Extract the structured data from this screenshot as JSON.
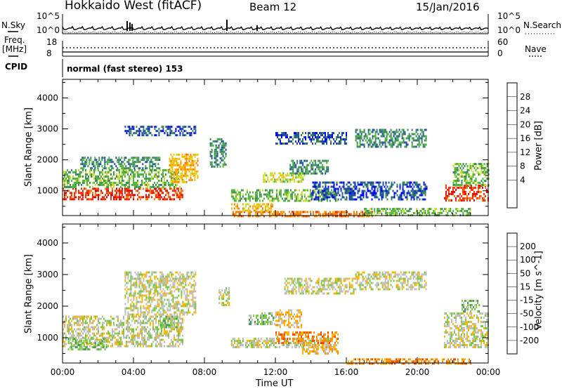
{
  "header": {
    "title": "Hokkaido West (fitACF)",
    "beam": "Beam 12",
    "date": "15/Jan/2016"
  },
  "panels": {
    "nsky_label": "N.Sky",
    "nsky_ticks": [
      "10^5",
      "10^0"
    ],
    "nsky_right_ticks": [
      "10^5",
      "10^0"
    ],
    "nsearch_label": "N.Search",
    "freq_label": "Freq.",
    "freq_unit": "[MHz]",
    "freq_ticks": [
      "18",
      "8"
    ],
    "nave_ticks": [
      "60",
      "0"
    ],
    "nave_label": "Nave",
    "cpid_label": "CPID",
    "cpid_value": "normal (fast stereo) 153"
  },
  "colors": {
    "power_scale": [
      "#0000ff",
      "#1e50a0",
      "#3c8a5a",
      "#50b43c",
      "#c8dc28",
      "#ffb400",
      "#ff7800",
      "#ff2800",
      "#dc0000"
    ],
    "velocity_scale": [
      "#0028c8",
      "#1e6eb4",
      "#3c9a50",
      "#78c83c",
      "#bebebe",
      "#ffb400",
      "#ff8c00",
      "#ff4600",
      "#e60000"
    ]
  },
  "chart_data": [
    {
      "type": "heatmap",
      "name": "Power",
      "ylabel": "Slant Range [km]",
      "y_ticks": [
        "4000",
        "3000",
        "2000",
        "1000"
      ],
      "ylim": [
        200,
        4600
      ],
      "colorbar_label": "Power [dB]",
      "colorbar_ticks": [
        "28",
        "24",
        "20",
        "16",
        "12",
        "8",
        "4"
      ],
      "patches": [
        {
          "x0": 0.0,
          "x1": 6.8,
          "y0": 700,
          "y1": 1100,
          "level": 7
        },
        {
          "x0": 0.0,
          "x1": 6.6,
          "y0": 1100,
          "y1": 1700,
          "level": 3
        },
        {
          "x0": 1.0,
          "x1": 5.5,
          "y0": 1700,
          "y1": 2100,
          "level": 2
        },
        {
          "x0": 6.0,
          "x1": 7.6,
          "y0": 1300,
          "y1": 2200,
          "level": 5
        },
        {
          "x0": 3.5,
          "x1": 7.5,
          "y0": 2800,
          "y1": 3100,
          "level": 1
        },
        {
          "x0": 8.3,
          "x1": 9.2,
          "y0": 1800,
          "y1": 2700,
          "level": 2
        },
        {
          "x0": 9.5,
          "x1": 15.5,
          "y0": 700,
          "y1": 1050,
          "level": 3
        },
        {
          "x0": 11.3,
          "x1": 13.6,
          "y0": 1300,
          "y1": 1600,
          "level": 4
        },
        {
          "x0": 12.8,
          "x1": 15.0,
          "y0": 1550,
          "y1": 2000,
          "level": 2
        },
        {
          "x0": 9.5,
          "x1": 17.5,
          "y0": 200,
          "y1": 350,
          "level": 6
        },
        {
          "x0": 9.5,
          "x1": 11.8,
          "y0": 350,
          "y1": 600,
          "level": 5
        },
        {
          "x0": 16.5,
          "x1": 20.5,
          "y0": 2400,
          "y1": 3000,
          "level": 2
        },
        {
          "x0": 12.0,
          "x1": 16.0,
          "y0": 2500,
          "y1": 2900,
          "level": 1
        },
        {
          "x0": 14.0,
          "x1": 20.5,
          "y0": 700,
          "y1": 1300,
          "level": 1
        },
        {
          "x0": 21.5,
          "x1": 24.0,
          "y0": 700,
          "y1": 1200,
          "level": 7
        },
        {
          "x0": 22.0,
          "x1": 24.0,
          "y0": 1200,
          "y1": 1900,
          "level": 3
        },
        {
          "x0": 17.0,
          "x1": 23.0,
          "y0": 200,
          "y1": 450,
          "level": 3
        }
      ]
    },
    {
      "type": "heatmap",
      "name": "Velocity",
      "ylabel": "Slant Range [km]",
      "y_ticks": [
        "4000",
        "3000",
        "2000",
        "1000"
      ],
      "ylim": [
        200,
        4600
      ],
      "colorbar_label": "Velocity [m s^-1]",
      "colorbar_ticks": [
        "200",
        "100",
        "50",
        "15",
        "-15",
        "-50",
        "-100",
        "-200"
      ],
      "x_ticks": [
        "00:00",
        "04:00",
        "08:00",
        "12:00",
        "16:00",
        "20:00",
        "00:00"
      ],
      "xlabel": "Time UT",
      "xlim": [
        0,
        24
      ],
      "patches": [
        {
          "x0": 0.0,
          "x1": 6.8,
          "y0": 700,
          "y1": 1700,
          "level": 4
        },
        {
          "x0": 0.3,
          "x1": 2.5,
          "y0": 600,
          "y1": 1000,
          "level": 3
        },
        {
          "x0": 3.5,
          "x1": 7.5,
          "y0": 1700,
          "y1": 3100,
          "level": 4
        },
        {
          "x0": 5.5,
          "x1": 6.5,
          "y0": 1300,
          "y1": 1700,
          "level": 3
        },
        {
          "x0": 10.5,
          "x1": 12.0,
          "y0": 1400,
          "y1": 1800,
          "level": 3
        },
        {
          "x0": 12.0,
          "x1": 13.5,
          "y0": 1300,
          "y1": 1900,
          "level": 5
        },
        {
          "x0": 9.5,
          "x1": 15.0,
          "y0": 700,
          "y1": 1000,
          "level": 4
        },
        {
          "x0": 12.0,
          "x1": 15.5,
          "y0": 800,
          "y1": 1200,
          "level": 6
        },
        {
          "x0": 13.5,
          "x1": 15.5,
          "y0": 500,
          "y1": 800,
          "level": 5
        },
        {
          "x0": 12.5,
          "x1": 16.5,
          "y0": 2400,
          "y1": 2900,
          "level": 4
        },
        {
          "x0": 16.5,
          "x1": 20.5,
          "y0": 2500,
          "y1": 3100,
          "level": 4
        },
        {
          "x0": 8.8,
          "x1": 9.4,
          "y0": 2000,
          "y1": 2600,
          "level": 4
        },
        {
          "x0": 16.0,
          "x1": 23.0,
          "y0": 200,
          "y1": 350,
          "level": 6
        },
        {
          "x0": 21.5,
          "x1": 24.0,
          "y0": 700,
          "y1": 1800,
          "level": 4
        },
        {
          "x0": 22.5,
          "x1": 23.5,
          "y0": 1800,
          "y1": 2200,
          "level": 3
        }
      ]
    }
  ]
}
